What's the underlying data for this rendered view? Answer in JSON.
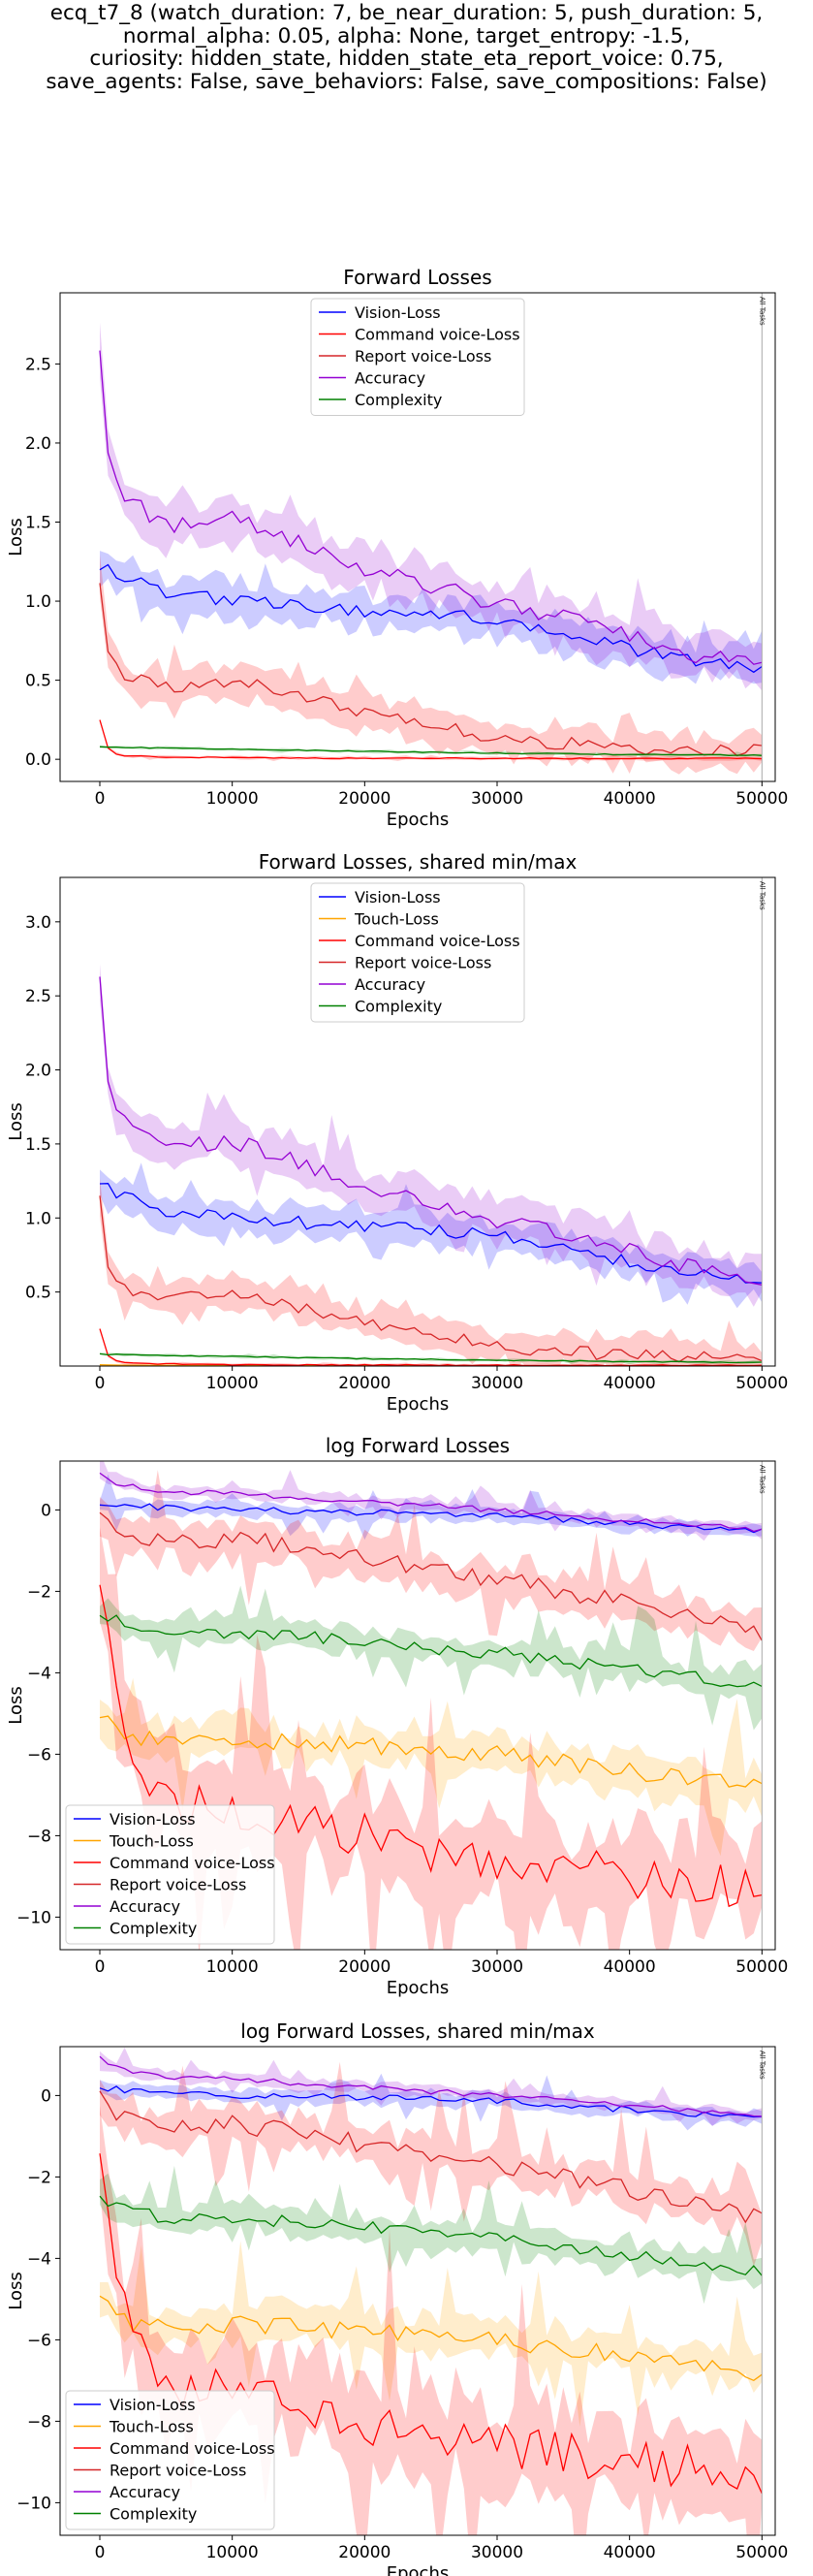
{
  "figure": {
    "title_lines": [
      "ecq_t7_8 (watch_duration: 7, be_near_duration: 5, push_duration: 5,",
      "normal_alpha: 0.05, alpha: None, target_entropy: -1.5,",
      "curiosity: hidden_state, hidden_state_eta_report_voice: 0.75,",
      "save_agents: False, save_behaviors: False, save_compositions: False)"
    ]
  },
  "colors": {
    "vision": "#0000ff",
    "touch": "#ffa500",
    "command": "#ff0000",
    "report": "#d62728",
    "accuracy": "#9400d3",
    "complexity": "#008000",
    "vision_fill": "#0000ff",
    "touch_fill": "#ffa500",
    "command_fill": "#ff0000",
    "report_fill": "#ff0000",
    "accuracy_fill": "#9400d3",
    "complexity_fill": "#008000",
    "frame": "#000000",
    "vline": "#aaaaaa"
  },
  "chart_data": [
    {
      "type": "line",
      "title": "Forward Losses",
      "xlabel": "Epochs",
      "ylabel": "Loss",
      "xlim": [
        -3000,
        51000
      ],
      "ylim": [
        -0.14,
        2.95
      ],
      "xticks": [
        0,
        10000,
        20000,
        30000,
        40000,
        50000
      ],
      "yticks": [
        0.0,
        0.5,
        1.0,
        1.5,
        2.0,
        2.5
      ],
      "ytick_labels": [
        "0.0",
        "0.5",
        "1.0",
        "1.5",
        "2.0",
        "2.5"
      ],
      "legend": "upper-center",
      "legend_entries": [
        "vision",
        "command",
        "report",
        "accuracy",
        "complexity"
      ],
      "vline": {
        "x": 50000,
        "label": "All Tasks"
      },
      "series": [
        {
          "key": "vision",
          "name": "Vision-Loss",
          "x": [
            0,
            500,
            1000,
            5000,
            10000,
            15000,
            20000,
            25000,
            30000,
            35000,
            40000,
            45000,
            50000
          ],
          "y": [
            1.22,
            1.2,
            1.17,
            1.05,
            1.0,
            0.97,
            0.94,
            0.92,
            0.88,
            0.8,
            0.7,
            0.62,
            0.58
          ],
          "band": 0.12
        },
        {
          "key": "command",
          "name": "Command voice-Loss",
          "x": [
            0,
            500,
            1000,
            2000,
            5000,
            10000,
            15000,
            20000,
            25000,
            30000,
            35000,
            40000,
            45000,
            50000
          ],
          "y": [
            0.25,
            0.08,
            0.04,
            0.02,
            0.015,
            0.01,
            0.008,
            0.007,
            0.006,
            0.006,
            0.005,
            0.005,
            0.005,
            0.005
          ],
          "band": 0.01
        },
        {
          "key": "report",
          "name": "Report voice-Loss",
          "x": [
            0,
            500,
            1000,
            2000,
            5000,
            10000,
            15000,
            20000,
            25000,
            30000,
            35000,
            40000,
            45000,
            50000
          ],
          "y": [
            1.13,
            0.7,
            0.6,
            0.52,
            0.45,
            0.5,
            0.4,
            0.3,
            0.22,
            0.13,
            0.1,
            0.07,
            0.06,
            0.05
          ],
          "band": 0.12
        },
        {
          "key": "accuracy",
          "name": "Accuracy",
          "x": [
            0,
            500,
            1000,
            2000,
            5000,
            10000,
            15000,
            20000,
            25000,
            30000,
            35000,
            40000,
            45000,
            50000
          ],
          "y": [
            2.6,
            2.0,
            1.8,
            1.65,
            1.48,
            1.52,
            1.38,
            1.2,
            1.1,
            0.98,
            0.9,
            0.78,
            0.66,
            0.6
          ],
          "band": 0.15
        },
        {
          "key": "complexity",
          "name": "Complexity",
          "x": [
            0,
            5000,
            10000,
            20000,
            30000,
            40000,
            50000
          ],
          "y": [
            0.08,
            0.07,
            0.065,
            0.05,
            0.04,
            0.03,
            0.025
          ],
          "band": 0.01
        }
      ]
    },
    {
      "type": "line",
      "title": "Forward Losses, shared min/max",
      "xlabel": "Epochs",
      "ylabel": "Loss",
      "xlim": [
        -3000,
        51000
      ],
      "ylim": [
        0.0,
        3.3
      ],
      "xticks": [
        0,
        10000,
        20000,
        30000,
        40000,
        50000
      ],
      "yticks": [
        0.5,
        1.0,
        1.5,
        2.0,
        2.5,
        3.0
      ],
      "ytick_labels": [
        "0.5",
        "1.0",
        "1.5",
        "2.0",
        "2.5",
        "3.0"
      ],
      "legend": "upper-center",
      "legend_entries": [
        "vision",
        "touch",
        "command",
        "report",
        "accuracy",
        "complexity"
      ],
      "vline": {
        "x": 50000,
        "label": "All Tasks"
      },
      "series": [
        {
          "key": "vision",
          "name": "Vision-Loss",
          "x": [
            0,
            500,
            1000,
            5000,
            10000,
            15000,
            20000,
            25000,
            30000,
            35000,
            40000,
            45000,
            50000
          ],
          "y": [
            1.22,
            1.2,
            1.17,
            1.05,
            1.0,
            0.97,
            0.94,
            0.92,
            0.88,
            0.8,
            0.7,
            0.62,
            0.58
          ],
          "band": 0.12
        },
        {
          "key": "touch",
          "name": "Touch-Loss",
          "x": [
            0,
            1000,
            5000,
            10000,
            20000,
            30000,
            40000,
            50000
          ],
          "y": [
            0.008,
            0.006,
            0.004,
            0.004,
            0.003,
            0.003,
            0.002,
            0.002
          ],
          "band": 0.002
        },
        {
          "key": "command",
          "name": "Command voice-Loss",
          "x": [
            0,
            500,
            1000,
            2000,
            5000,
            10000,
            15000,
            20000,
            25000,
            30000,
            35000,
            40000,
            45000,
            50000
          ],
          "y": [
            0.25,
            0.08,
            0.04,
            0.02,
            0.015,
            0.01,
            0.008,
            0.007,
            0.006,
            0.006,
            0.005,
            0.005,
            0.005,
            0.005
          ],
          "band": 0.01
        },
        {
          "key": "report",
          "name": "Report voice-Loss",
          "x": [
            0,
            500,
            1000,
            2000,
            5000,
            10000,
            15000,
            20000,
            25000,
            30000,
            35000,
            40000,
            45000,
            50000
          ],
          "y": [
            1.13,
            0.7,
            0.6,
            0.52,
            0.45,
            0.5,
            0.4,
            0.3,
            0.22,
            0.13,
            0.1,
            0.07,
            0.06,
            0.05
          ],
          "band": 0.12
        },
        {
          "key": "accuracy",
          "name": "Accuracy",
          "x": [
            0,
            500,
            1000,
            2000,
            5000,
            10000,
            15000,
            20000,
            25000,
            30000,
            35000,
            40000,
            45000,
            50000
          ],
          "y": [
            2.6,
            2.0,
            1.8,
            1.65,
            1.48,
            1.52,
            1.38,
            1.2,
            1.1,
            0.98,
            0.9,
            0.78,
            0.66,
            0.6
          ],
          "band": 0.15
        },
        {
          "key": "complexity",
          "name": "Complexity",
          "x": [
            0,
            5000,
            10000,
            20000,
            30000,
            40000,
            50000
          ],
          "y": [
            0.08,
            0.07,
            0.065,
            0.05,
            0.04,
            0.03,
            0.025
          ],
          "band": 0.01
        }
      ]
    },
    {
      "type": "line",
      "title": "log Forward Losses",
      "xlabel": "Epochs",
      "ylabel": "Loss",
      "xlim": [
        -3000,
        51000
      ],
      "ylim": [
        -10.8,
        1.2
      ],
      "xticks": [
        0,
        10000,
        20000,
        30000,
        40000,
        50000
      ],
      "yticks": [
        0,
        -2,
        -4,
        -6,
        -8,
        -10
      ],
      "ytick_labels": [
        "0",
        "−2",
        "−4",
        "−6",
        "−8",
        "−10"
      ],
      "legend": "lower-left",
      "legend_entries": [
        "vision",
        "touch",
        "command",
        "report",
        "accuracy",
        "complexity"
      ],
      "vline": {
        "x": 50000,
        "label": "All Tasks"
      },
      "series": [
        {
          "key": "vision",
          "name": "Vision-Loss",
          "x": [
            0,
            5000,
            10000,
            20000,
            30000,
            40000,
            50000
          ],
          "y": [
            0.2,
            0.05,
            0.0,
            -0.06,
            -0.13,
            -0.35,
            -0.55
          ],
          "band": 0.18
        },
        {
          "key": "touch",
          "name": "Touch-Loss",
          "x": [
            0,
            1000,
            2000,
            5000,
            10000,
            15000,
            20000,
            25000,
            30000,
            35000,
            40000,
            45000,
            50000
          ],
          "y": [
            -4.9,
            -5.4,
            -5.6,
            -5.7,
            -5.6,
            -5.7,
            -5.8,
            -5.9,
            -6.0,
            -6.2,
            -6.4,
            -6.6,
            -6.8
          ],
          "band": 0.5
        },
        {
          "key": "command",
          "name": "Command voice-Loss",
          "x": [
            0,
            1000,
            2000,
            4000,
            6000,
            10000,
            15000,
            20000,
            25000,
            30000,
            35000,
            40000,
            45000,
            50000
          ],
          "y": [
            -1.4,
            -4.0,
            -5.5,
            -6.7,
            -7.2,
            -7.3,
            -7.6,
            -8.0,
            -8.4,
            -8.6,
            -8.8,
            -9.0,
            -9.1,
            -9.3
          ],
          "band": 1.2
        },
        {
          "key": "report",
          "name": "Report voice-Loss",
          "x": [
            0,
            1000,
            2000,
            5000,
            10000,
            15000,
            20000,
            25000,
            30000,
            35000,
            40000,
            45000,
            50000
          ],
          "y": [
            0.1,
            -0.4,
            -0.6,
            -0.8,
            -0.7,
            -0.9,
            -1.2,
            -1.5,
            -1.7,
            -2.0,
            -2.3,
            -2.7,
            -3.0
          ],
          "band": 0.5
        },
        {
          "key": "accuracy",
          "name": "Accuracy",
          "x": [
            0,
            1000,
            2000,
            5000,
            10000,
            20000,
            30000,
            40000,
            50000
          ],
          "y": [
            0.95,
            0.7,
            0.6,
            0.45,
            0.4,
            0.2,
            0.0,
            -0.25,
            -0.5
          ],
          "band": 0.15
        },
        {
          "key": "complexity",
          "name": "Complexity",
          "x": [
            0,
            2000,
            5000,
            10000,
            15000,
            20000,
            25000,
            30000,
            35000,
            40000,
            45000,
            50000
          ],
          "y": [
            -2.5,
            -2.8,
            -3.0,
            -3.0,
            -3.1,
            -3.2,
            -3.4,
            -3.5,
            -3.7,
            -3.9,
            -4.1,
            -4.3
          ],
          "band": 0.35
        }
      ]
    },
    {
      "type": "line",
      "title": "log Forward Losses, shared min/max",
      "xlabel": "Epochs",
      "ylabel": "Loss",
      "xlim": [
        -3000,
        51000
      ],
      "ylim": [
        -10.8,
        1.2
      ],
      "xticks": [
        0,
        10000,
        20000,
        30000,
        40000,
        50000
      ],
      "yticks": [
        0,
        -2,
        -4,
        -6,
        -8,
        -10
      ],
      "ytick_labels": [
        "0",
        "−2",
        "−4",
        "−6",
        "−8",
        "−10"
      ],
      "legend": "lower-left",
      "legend_entries": [
        "vision",
        "touch",
        "command",
        "report",
        "accuracy",
        "complexity"
      ],
      "vline": {
        "x": 50000,
        "label": "All Tasks"
      },
      "series": [
        {
          "key": "vision",
          "name": "Vision-Loss",
          "x": [
            0,
            5000,
            10000,
            20000,
            30000,
            40000,
            50000
          ],
          "y": [
            0.2,
            0.05,
            0.0,
            -0.06,
            -0.13,
            -0.35,
            -0.55
          ],
          "band": 0.18
        },
        {
          "key": "touch",
          "name": "Touch-Loss",
          "x": [
            0,
            1000,
            2000,
            5000,
            10000,
            15000,
            20000,
            25000,
            30000,
            35000,
            40000,
            45000,
            50000
          ],
          "y": [
            -4.9,
            -5.4,
            -5.6,
            -5.7,
            -5.6,
            -5.7,
            -5.8,
            -5.9,
            -6.0,
            -6.2,
            -6.4,
            -6.6,
            -6.8
          ],
          "band": 0.5
        },
        {
          "key": "command",
          "name": "Command voice-Loss",
          "x": [
            0,
            1000,
            2000,
            4000,
            6000,
            10000,
            15000,
            20000,
            25000,
            30000,
            35000,
            40000,
            45000,
            50000
          ],
          "y": [
            -1.4,
            -4.0,
            -5.5,
            -6.7,
            -7.2,
            -7.3,
            -7.6,
            -8.0,
            -8.4,
            -8.6,
            -8.8,
            -9.0,
            -9.1,
            -9.3
          ],
          "band": 1.2
        },
        {
          "key": "report",
          "name": "Report voice-Loss",
          "x": [
            0,
            1000,
            2000,
            5000,
            10000,
            15000,
            20000,
            25000,
            30000,
            35000,
            40000,
            45000,
            50000
          ],
          "y": [
            0.1,
            -0.4,
            -0.6,
            -0.8,
            -0.7,
            -0.9,
            -1.2,
            -1.5,
            -1.7,
            -2.0,
            -2.3,
            -2.7,
            -3.0
          ],
          "band": 0.5
        },
        {
          "key": "accuracy",
          "name": "Accuracy",
          "x": [
            0,
            1000,
            2000,
            5000,
            10000,
            20000,
            30000,
            40000,
            50000
          ],
          "y": [
            0.95,
            0.7,
            0.6,
            0.45,
            0.4,
            0.2,
            0.0,
            -0.25,
            -0.5
          ],
          "band": 0.15
        },
        {
          "key": "complexity",
          "name": "Complexity",
          "x": [
            0,
            2000,
            5000,
            10000,
            15000,
            20000,
            25000,
            30000,
            35000,
            40000,
            45000,
            50000
          ],
          "y": [
            -2.5,
            -2.8,
            -3.0,
            -3.0,
            -3.1,
            -3.2,
            -3.4,
            -3.5,
            -3.7,
            -3.9,
            -4.1,
            -4.3
          ],
          "band": 0.35
        }
      ]
    }
  ]
}
